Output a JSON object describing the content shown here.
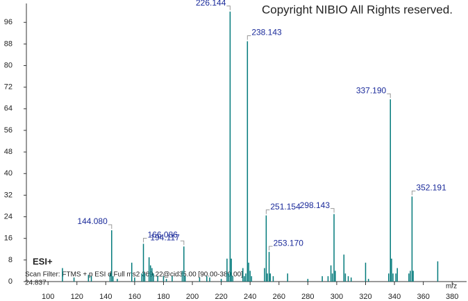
{
  "chart_data": {
    "type": "spectrum",
    "title": "Copyright NIBIO All Rights reserved.",
    "annotations": [
      "ESI+",
      "Scan Filter: FTMS + p ESI d Full ms2 369.22@cid35.00 [90.00-380.00]",
      "24.837"
    ],
    "x_label": "m/z",
    "color": "#00797a",
    "label_color": "#1a2a9a",
    "xlim": [
      85,
      390
    ],
    "ylim": [
      0,
      103
    ],
    "xticks": [
      100,
      120,
      140,
      160,
      180,
      200,
      220,
      240,
      260,
      280,
      300,
      320,
      340,
      360,
      380
    ],
    "yticks": [
      0,
      8,
      16,
      24,
      32,
      40,
      48,
      56,
      64,
      72,
      80,
      88,
      96
    ],
    "x": [
      110,
      118,
      128,
      130,
      143,
      144.08,
      145,
      148,
      158,
      160,
      165,
      166.086,
      167,
      170,
      171,
      172,
      173,
      176,
      180,
      182,
      186,
      193,
      194.117,
      195,
      205,
      210,
      212,
      220,
      224,
      225,
      226.144,
      227,
      228,
      235,
      236,
      237,
      238.143,
      239,
      240,
      241,
      250,
      251.154,
      252,
      253.17,
      254,
      256,
      266,
      280,
      290,
      294,
      296,
      297,
      298.143,
      299,
      305,
      306,
      308,
      310,
      320,
      322,
      336,
      337.19,
      338,
      339,
      341,
      342,
      350,
      351,
      352.191,
      353,
      370
    ],
    "values": [
      5,
      1.5,
      2.5,
      2,
      3,
      19,
      2,
      1,
      7,
      1.5,
      3,
      14,
      3,
      9,
      6,
      5,
      3,
      2,
      2,
      1,
      2,
      4,
      13,
      2,
      1.5,
      2,
      1.5,
      1,
      8.5,
      3,
      100,
      8.5,
      2,
      5,
      2,
      3,
      89,
      7,
      4,
      2,
      5,
      24.5,
      3,
      11,
      3,
      2,
      3,
      1,
      2,
      2,
      6,
      3,
      25,
      4,
      10,
      3,
      2,
      1.5,
      7,
      1,
      3,
      67.5,
      8.5,
      3,
      3,
      5,
      3,
      4,
      31.5,
      4,
      7.5
    ],
    "peak_labels": [
      null,
      null,
      null,
      null,
      null,
      "144.080",
      null,
      null,
      null,
      null,
      null,
      "166.086",
      null,
      null,
      null,
      null,
      null,
      null,
      null,
      null,
      null,
      null,
      "194.117",
      null,
      null,
      null,
      null,
      null,
      null,
      null,
      "226.144",
      null,
      null,
      null,
      null,
      null,
      "238.143",
      null,
      null,
      null,
      null,
      "251.154",
      null,
      "253.170",
      null,
      null,
      null,
      null,
      null,
      null,
      null,
      null,
      "298.143",
      null,
      null,
      null,
      null,
      null,
      null,
      null,
      null,
      "337.190",
      null,
      null,
      null,
      null,
      null,
      null,
      "352.191",
      null,
      null
    ]
  }
}
